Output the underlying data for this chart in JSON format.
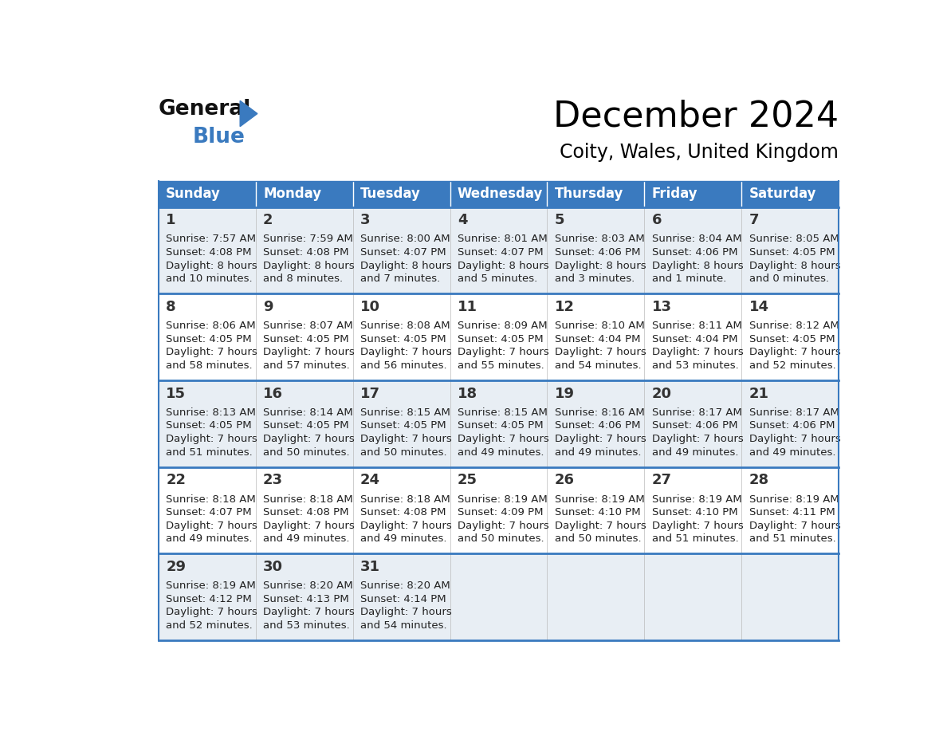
{
  "title": "December 2024",
  "subtitle": "Coity, Wales, United Kingdom",
  "header_color": "#3a7abf",
  "header_text_color": "#ffffff",
  "days_of_week": [
    "Sunday",
    "Monday",
    "Tuesday",
    "Wednesday",
    "Thursday",
    "Friday",
    "Saturday"
  ],
  "bg_color_even": "#e8eef4",
  "bg_color_odd": "#ffffff",
  "border_color": "#3a7abf",
  "text_color": "#222222",
  "num_color": "#333333",
  "calendar": [
    [
      {
        "day": 1,
        "sunrise": "7:57 AM",
        "sunset": "4:08 PM",
        "daylight": "8 hours and 10 minutes"
      },
      {
        "day": 2,
        "sunrise": "7:59 AM",
        "sunset": "4:08 PM",
        "daylight": "8 hours and 8 minutes"
      },
      {
        "day": 3,
        "sunrise": "8:00 AM",
        "sunset": "4:07 PM",
        "daylight": "8 hours and 7 minutes"
      },
      {
        "day": 4,
        "sunrise": "8:01 AM",
        "sunset": "4:07 PM",
        "daylight": "8 hours and 5 minutes"
      },
      {
        "day": 5,
        "sunrise": "8:03 AM",
        "sunset": "4:06 PM",
        "daylight": "8 hours and 3 minutes"
      },
      {
        "day": 6,
        "sunrise": "8:04 AM",
        "sunset": "4:06 PM",
        "daylight": "8 hours and 1 minute"
      },
      {
        "day": 7,
        "sunrise": "8:05 AM",
        "sunset": "4:05 PM",
        "daylight": "8 hours and 0 minutes"
      }
    ],
    [
      {
        "day": 8,
        "sunrise": "8:06 AM",
        "sunset": "4:05 PM",
        "daylight": "7 hours and 58 minutes"
      },
      {
        "day": 9,
        "sunrise": "8:07 AM",
        "sunset": "4:05 PM",
        "daylight": "7 hours and 57 minutes"
      },
      {
        "day": 10,
        "sunrise": "8:08 AM",
        "sunset": "4:05 PM",
        "daylight": "7 hours and 56 minutes"
      },
      {
        "day": 11,
        "sunrise": "8:09 AM",
        "sunset": "4:05 PM",
        "daylight": "7 hours and 55 minutes"
      },
      {
        "day": 12,
        "sunrise": "8:10 AM",
        "sunset": "4:04 PM",
        "daylight": "7 hours and 54 minutes"
      },
      {
        "day": 13,
        "sunrise": "8:11 AM",
        "sunset": "4:04 PM",
        "daylight": "7 hours and 53 minutes"
      },
      {
        "day": 14,
        "sunrise": "8:12 AM",
        "sunset": "4:05 PM",
        "daylight": "7 hours and 52 minutes"
      }
    ],
    [
      {
        "day": 15,
        "sunrise": "8:13 AM",
        "sunset": "4:05 PM",
        "daylight": "7 hours and 51 minutes"
      },
      {
        "day": 16,
        "sunrise": "8:14 AM",
        "sunset": "4:05 PM",
        "daylight": "7 hours and 50 minutes"
      },
      {
        "day": 17,
        "sunrise": "8:15 AM",
        "sunset": "4:05 PM",
        "daylight": "7 hours and 50 minutes"
      },
      {
        "day": 18,
        "sunrise": "8:15 AM",
        "sunset": "4:05 PM",
        "daylight": "7 hours and 49 minutes"
      },
      {
        "day": 19,
        "sunrise": "8:16 AM",
        "sunset": "4:06 PM",
        "daylight": "7 hours and 49 minutes"
      },
      {
        "day": 20,
        "sunrise": "8:17 AM",
        "sunset": "4:06 PM",
        "daylight": "7 hours and 49 minutes"
      },
      {
        "day": 21,
        "sunrise": "8:17 AM",
        "sunset": "4:06 PM",
        "daylight": "7 hours and 49 minutes"
      }
    ],
    [
      {
        "day": 22,
        "sunrise": "8:18 AM",
        "sunset": "4:07 PM",
        "daylight": "7 hours and 49 minutes"
      },
      {
        "day": 23,
        "sunrise": "8:18 AM",
        "sunset": "4:08 PM",
        "daylight": "7 hours and 49 minutes"
      },
      {
        "day": 24,
        "sunrise": "8:18 AM",
        "sunset": "4:08 PM",
        "daylight": "7 hours and 49 minutes"
      },
      {
        "day": 25,
        "sunrise": "8:19 AM",
        "sunset": "4:09 PM",
        "daylight": "7 hours and 50 minutes"
      },
      {
        "day": 26,
        "sunrise": "8:19 AM",
        "sunset": "4:10 PM",
        "daylight": "7 hours and 50 minutes"
      },
      {
        "day": 27,
        "sunrise": "8:19 AM",
        "sunset": "4:10 PM",
        "daylight": "7 hours and 51 minutes"
      },
      {
        "day": 28,
        "sunrise": "8:19 AM",
        "sunset": "4:11 PM",
        "daylight": "7 hours and 51 minutes"
      }
    ],
    [
      {
        "day": 29,
        "sunrise": "8:19 AM",
        "sunset": "4:12 PM",
        "daylight": "7 hours and 52 minutes"
      },
      {
        "day": 30,
        "sunrise": "8:20 AM",
        "sunset": "4:13 PM",
        "daylight": "7 hours and 53 minutes"
      },
      {
        "day": 31,
        "sunrise": "8:20 AM",
        "sunset": "4:14 PM",
        "daylight": "7 hours and 54 minutes"
      },
      null,
      null,
      null,
      null
    ]
  ],
  "logo_general_color": "#111111",
  "logo_blue_color": "#3a7abf",
  "logo_triangle_color": "#3a7abf"
}
